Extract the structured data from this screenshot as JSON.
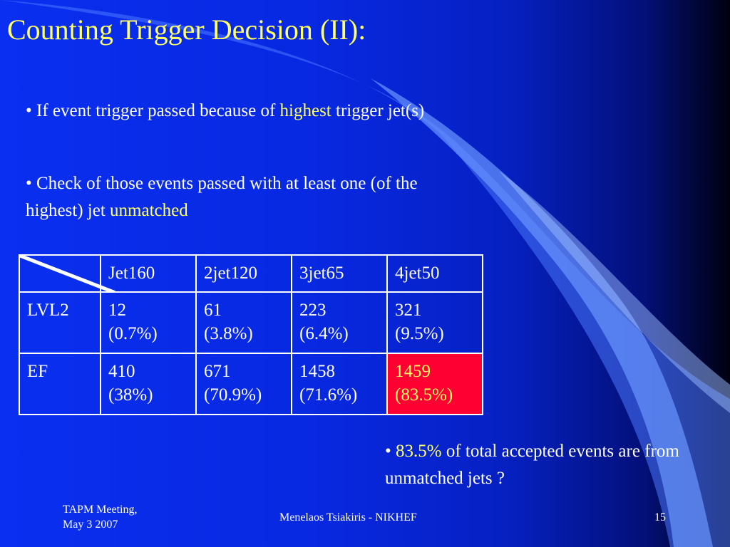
{
  "slide": {
    "title": "Counting Trigger Decision (II):",
    "bullets": [
      {
        "prefix": "• If event trigger passed because of ",
        "highlight": "highest",
        "suffix": " trigger jet(s)"
      },
      {
        "prefix": "• Check of those events passed with at least one (of the highest) jet ",
        "highlight": "unmatched",
        "suffix": ""
      },
      {
        "prefix": "• ",
        "highlight": "83.5%",
        "suffix": " of total accepted events are from unmatched jets ?"
      }
    ]
  },
  "table": {
    "headers": [
      "Jet160",
      "2jet120",
      "3jet65",
      "4jet50"
    ],
    "rows": [
      {
        "label": "LVL2",
        "cells": [
          {
            "count": "12",
            "pct": "(0.7%)"
          },
          {
            "count": "61",
            "pct": "(3.8%)"
          },
          {
            "count": "223",
            "pct": "(6.4%)"
          },
          {
            "count": "321",
            "pct": "(9.5%)"
          }
        ]
      },
      {
        "label": "EF",
        "cells": [
          {
            "count": "410",
            "pct": "(38%)"
          },
          {
            "count": "671",
            "pct": "(70.9%)"
          },
          {
            "count": "1458",
            "pct": "(71.6%)"
          },
          {
            "count": "1459",
            "pct": "(83.5%)"
          }
        ]
      }
    ],
    "highlight_color": "#ff0033"
  },
  "footer": {
    "left_line1": "TAPM Meeting,",
    "left_line2": "May 3 2007",
    "center": "Menelaos Tsiakiris - NIKHEF",
    "page_number": "15"
  },
  "colors": {
    "title": "#ffff66",
    "highlight_text": "#ffff66",
    "background": "#0a2ff0"
  }
}
